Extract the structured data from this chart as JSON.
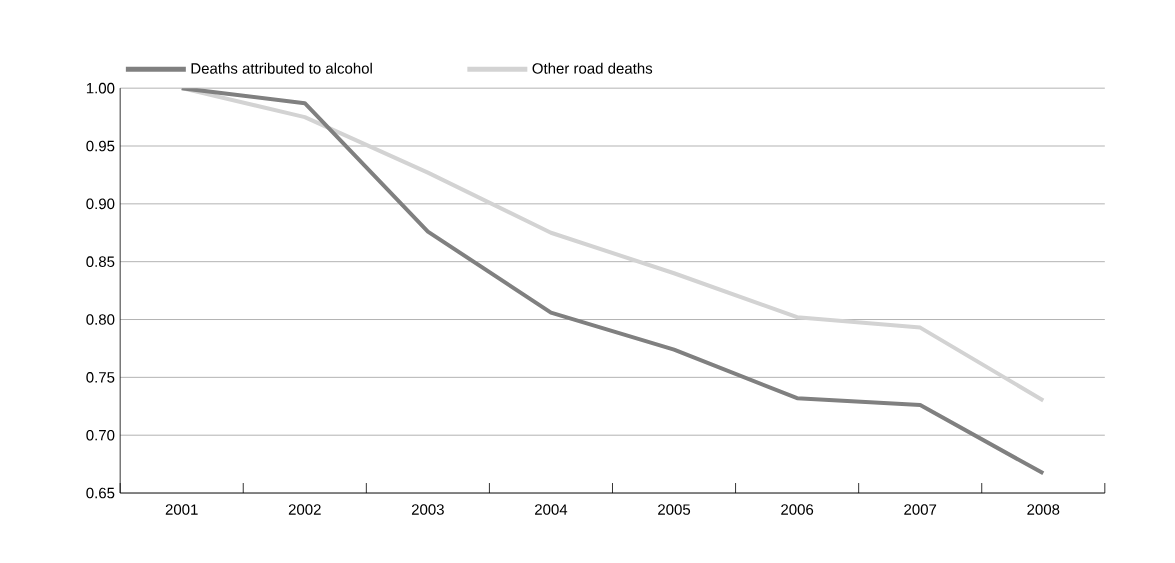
{
  "chart_data": {
    "type": "line",
    "categories": [
      "2001",
      "2002",
      "2003",
      "2004",
      "2005",
      "2006",
      "2007",
      "2008"
    ],
    "series": [
      {
        "name": "Deaths attributed to alcohol",
        "color": "#808080",
        "values": [
          1.0,
          0.987,
          0.876,
          0.806,
          0.774,
          0.732,
          0.726,
          0.667
        ]
      },
      {
        "name": "Other road deaths",
        "color": "#d3d3d3",
        "values": [
          1.0,
          0.975,
          0.927,
          0.875,
          0.84,
          0.802,
          0.793,
          0.73
        ]
      }
    ],
    "ylim": [
      0.65,
      1.0
    ],
    "yticks": [
      {
        "value": 0.65,
        "label": "0.65"
      },
      {
        "value": 0.7,
        "label": "0.70"
      },
      {
        "value": 0.75,
        "label": "0.75"
      },
      {
        "value": 0.8,
        "label": "0.80"
      },
      {
        "value": 0.85,
        "label": "0.85"
      },
      {
        "value": 0.9,
        "label": "0.90"
      },
      {
        "value": 0.95,
        "label": "0.95"
      },
      {
        "value": 1.0,
        "label": "1.00"
      }
    ],
    "grid": "y",
    "legend": "top left",
    "marker": "none",
    "line_style": "solid"
  }
}
